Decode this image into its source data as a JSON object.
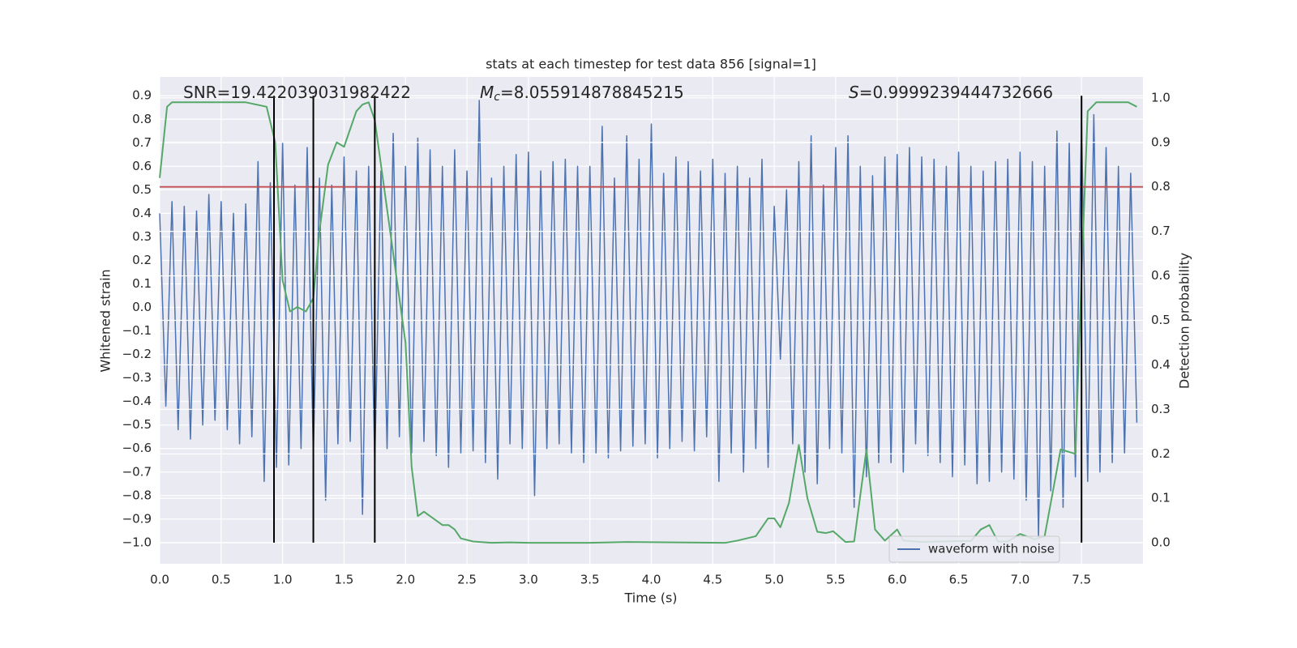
{
  "chart_data": {
    "type": "line",
    "title": "stats at each timestep for test data 856 [signal=1]",
    "x_label": "Time (s)",
    "y_label": "Whitened strain",
    "y2_label": "Detection probability",
    "background": "#eaeaf2",
    "grid": true,
    "legend": "lower right",
    "xlim": [
      0,
      8.0
    ],
    "ylim": [
      -1.09,
      0.98
    ],
    "y2lim": [
      -0.047,
      1.047
    ],
    "xticks": [
      {
        "value": 0,
        "label": "0.0"
      },
      {
        "value": 0.5,
        "label": "0.5"
      },
      {
        "value": 1,
        "label": "1.0"
      },
      {
        "value": 1.5,
        "label": "1.5"
      },
      {
        "value": 2,
        "label": "2.0"
      },
      {
        "value": 2.5,
        "label": "2.5"
      },
      {
        "value": 3,
        "label": "3.0"
      },
      {
        "value": 3.5,
        "label": "3.5"
      },
      {
        "value": 4,
        "label": "4.0"
      },
      {
        "value": 4.5,
        "label": "4.5"
      },
      {
        "value": 5,
        "label": "5.0"
      },
      {
        "value": 5.5,
        "label": "5.5"
      },
      {
        "value": 6,
        "label": "6.0"
      },
      {
        "value": 6.5,
        "label": "6.5"
      },
      {
        "value": 7,
        "label": "7.0"
      },
      {
        "value": 7.5,
        "label": "7.5"
      }
    ],
    "yticks": [
      {
        "value": -1.0,
        "label": "−1.0"
      },
      {
        "value": -0.9,
        "label": "−0.9"
      },
      {
        "value": -0.8,
        "label": "−0.8"
      },
      {
        "value": -0.7,
        "label": "−0.7"
      },
      {
        "value": -0.6,
        "label": "−0.6"
      },
      {
        "value": -0.5,
        "label": "−0.5"
      },
      {
        "value": -0.4,
        "label": "−0.4"
      },
      {
        "value": -0.3,
        "label": "−0.3"
      },
      {
        "value": -0.2,
        "label": "−0.2"
      },
      {
        "value": -0.1,
        "label": "−0.1"
      },
      {
        "value": 0,
        "label": "0.0"
      },
      {
        "value": 0.1,
        "label": "0.1"
      },
      {
        "value": 0.2,
        "label": "0.2"
      },
      {
        "value": 0.3,
        "label": "0.3"
      },
      {
        "value": 0.4,
        "label": "0.4"
      },
      {
        "value": 0.5,
        "label": "0.5"
      },
      {
        "value": 0.6,
        "label": "0.6"
      },
      {
        "value": 0.7,
        "label": "0.7"
      },
      {
        "value": 0.8,
        "label": "0.8"
      },
      {
        "value": 0.9,
        "label": "0.9"
      }
    ],
    "y2ticks": [
      {
        "value": 0,
        "label": "0.0"
      },
      {
        "value": 0.1,
        "label": "0.1"
      },
      {
        "value": 0.2,
        "label": "0.2"
      },
      {
        "value": 0.3,
        "label": "0.3"
      },
      {
        "value": 0.4,
        "label": "0.4"
      },
      {
        "value": 0.5,
        "label": "0.5"
      },
      {
        "value": 0.6,
        "label": "0.6"
      },
      {
        "value": 0.7,
        "label": "0.7"
      },
      {
        "value": 0.8,
        "label": "0.8"
      },
      {
        "value": 0.9,
        "label": "0.9"
      },
      {
        "value": 1,
        "label": "1.0"
      }
    ],
    "annotations": [
      {
        "text": "SNR=19.422039031982422"
      },
      {
        "symbol": "M",
        "subscript": "c",
        "text": "=8.055914878845215"
      },
      {
        "symbol": "S",
        "text": "=0.9999239444732666"
      }
    ],
    "series": [
      {
        "name": "waveform with noise",
        "color": "#4c72b0",
        "x": [
          0,
          0.05,
          0.1,
          0.15,
          0.2,
          0.25,
          0.3,
          0.35,
          0.4,
          0.45,
          0.5,
          0.55,
          0.6,
          0.65,
          0.7,
          0.75,
          0.8,
          0.85,
          0.9,
          0.95,
          1,
          1.05,
          1.1,
          1.15,
          1.2,
          1.25,
          1.3,
          1.35,
          1.4,
          1.45,
          1.5,
          1.55,
          1.6,
          1.65,
          1.7,
          1.75,
          1.8,
          1.85,
          1.9,
          1.95,
          2,
          2.05,
          2.1,
          2.15,
          2.2,
          2.25,
          2.3,
          2.35,
          2.4,
          2.45,
          2.5,
          2.55,
          2.6,
          2.65,
          2.7,
          2.75,
          2.8,
          2.85,
          2.9,
          2.95,
          3,
          3.05,
          3.1,
          3.15,
          3.2,
          3.25,
          3.3,
          3.35,
          3.4,
          3.45,
          3.5,
          3.55,
          3.6,
          3.65,
          3.7,
          3.75,
          3.8,
          3.85,
          3.9,
          3.95,
          4,
          4.05,
          4.1,
          4.15,
          4.2,
          4.25,
          4.3,
          4.35,
          4.4,
          4.45,
          4.5,
          4.55,
          4.6,
          4.65,
          4.7,
          4.75,
          4.8,
          4.85,
          4.9,
          4.95,
          5,
          5.05,
          5.1,
          5.15,
          5.2,
          5.25,
          5.3,
          5.35,
          5.4,
          5.45,
          5.5,
          5.55,
          5.6,
          5.65,
          5.7,
          5.75,
          5.8,
          5.85,
          5.9,
          5.95,
          6,
          6.05,
          6.1,
          6.15,
          6.2,
          6.25,
          6.3,
          6.35,
          6.4,
          6.45,
          6.5,
          6.55,
          6.6,
          6.65,
          6.7,
          6.75,
          6.8,
          6.85,
          6.9,
          6.95,
          7,
          7.05,
          7.1,
          7.15,
          7.2,
          7.25,
          7.3,
          7.35,
          7.4,
          7.45,
          7.5,
          7.55,
          7.6,
          7.65,
          7.7,
          7.75,
          7.8,
          7.85,
          7.9,
          7.95
        ],
        "values": [
          0.4,
          -0.42,
          0.45,
          -0.52,
          0.43,
          -0.56,
          0.41,
          -0.5,
          0.48,
          -0.48,
          0.45,
          -0.52,
          0.4,
          -0.58,
          0.44,
          -0.55,
          0.62,
          -0.74,
          0.53,
          -0.68,
          0.7,
          -0.67,
          0.52,
          -0.6,
          0.68,
          -0.63,
          0.55,
          -0.82,
          0.52,
          -0.58,
          0.64,
          -0.57,
          0.58,
          -0.88,
          0.6,
          -0.66,
          0.58,
          -0.6,
          0.74,
          -0.55,
          0.6,
          -0.62,
          0.72,
          -0.57,
          0.67,
          -0.63,
          0.6,
          -0.68,
          0.67,
          -0.62,
          0.58,
          -0.61,
          0.88,
          -0.66,
          0.55,
          -0.73,
          0.6,
          -0.58,
          0.65,
          -0.6,
          0.66,
          -0.8,
          0.58,
          -0.6,
          0.62,
          -0.58,
          0.63,
          -0.62,
          0.6,
          -0.66,
          0.6,
          -0.62,
          0.77,
          -0.64,
          0.55,
          -0.61,
          0.73,
          -0.59,
          0.63,
          -0.58,
          0.78,
          -0.64,
          0.57,
          -0.6,
          0.64,
          -0.57,
          0.62,
          -0.61,
          0.58,
          -0.55,
          0.63,
          -0.74,
          0.57,
          -0.62,
          0.6,
          -0.7,
          0.55,
          -0.6,
          0.63,
          -0.68,
          0.43,
          -0.22,
          0.5,
          -0.58,
          0.62,
          -0.7,
          0.73,
          -0.75,
          0.52,
          -0.6,
          0.68,
          -0.62,
          0.73,
          -0.85,
          0.6,
          -0.72,
          0.56,
          -0.66,
          0.64,
          -0.66,
          0.65,
          -0.7,
          0.68,
          -0.58,
          0.64,
          -0.63,
          0.63,
          -0.66,
          0.6,
          -0.72,
          0.66,
          -0.67,
          0.6,
          -0.75,
          0.58,
          -0.74,
          0.62,
          -0.7,
          0.63,
          -0.73,
          0.66,
          -0.82,
          0.62,
          -0.98,
          0.6,
          -0.78,
          0.75,
          -0.85,
          0.7,
          -0.72,
          0.8,
          -0.74,
          0.82,
          -0.7,
          0.68,
          -0.66,
          0.6,
          -0.62,
          0.57,
          -0.49
        ]
      },
      {
        "axis": "y2",
        "color": "#55a868",
        "x": [
          0,
          0.06,
          0.1,
          0.3,
          0.5,
          0.7,
          0.87,
          0.94,
          1.0,
          1.06,
          1.12,
          1.19,
          1.25,
          1.3,
          1.37,
          1.44,
          1.5,
          1.6,
          1.65,
          1.7,
          1.75,
          1.8,
          1.9,
          2.0,
          2.05,
          2.1,
          2.15,
          2.2,
          2.3,
          2.35,
          2.4,
          2.45,
          2.55,
          2.7,
          2.85,
          3.0,
          3.5,
          3.8,
          4.2,
          4.6,
          4.7,
          4.85,
          4.95,
          5.0,
          5.05,
          5.12,
          5.2,
          5.27,
          5.35,
          5.42,
          5.48,
          5.58,
          5.65,
          5.75,
          5.82,
          5.9,
          6.0,
          6.05,
          6.2,
          6.5,
          6.6,
          6.68,
          6.75,
          6.82,
          6.9,
          7.0,
          7.12,
          7.2,
          7.25,
          7.33,
          7.45,
          7.5,
          7.55,
          7.62,
          7.75,
          7.88,
          7.95
        ],
        "values": [
          0.82,
          0.98,
          0.99,
          0.99,
          0.99,
          0.99,
          0.98,
          0.9,
          0.59,
          0.52,
          0.53,
          0.52,
          0.55,
          0.7,
          0.85,
          0.9,
          0.89,
          0.97,
          0.985,
          0.99,
          0.95,
          0.85,
          0.65,
          0.45,
          0.17,
          0.06,
          0.07,
          0.06,
          0.04,
          0.04,
          0.03,
          0.01,
          0.003,
          0.0,
          0.001,
          0.0,
          0.0,
          0.002,
          0.001,
          0.0,
          0.005,
          0.015,
          0.055,
          0.055,
          0.035,
          0.09,
          0.22,
          0.1,
          0.025,
          0.022,
          0.026,
          0.002,
          0.003,
          0.21,
          0.03,
          0.005,
          0.03,
          0.005,
          0.002,
          0.004,
          0.004,
          0.03,
          0.04,
          0.003,
          0.003,
          0.02,
          0.008,
          0.015,
          0.09,
          0.21,
          0.2,
          0.6,
          0.97,
          0.99,
          0.99,
          0.99,
          0.98
        ]
      }
    ],
    "hlines": [
      {
        "y": 0.8,
        "axis": "y2",
        "color": "#c44e52"
      }
    ],
    "vlines": {
      "x": [
        0.93,
        1.25,
        1.75,
        7.5
      ],
      "ymin": -1.0,
      "ymax": 0.9,
      "color": "#000000"
    }
  }
}
